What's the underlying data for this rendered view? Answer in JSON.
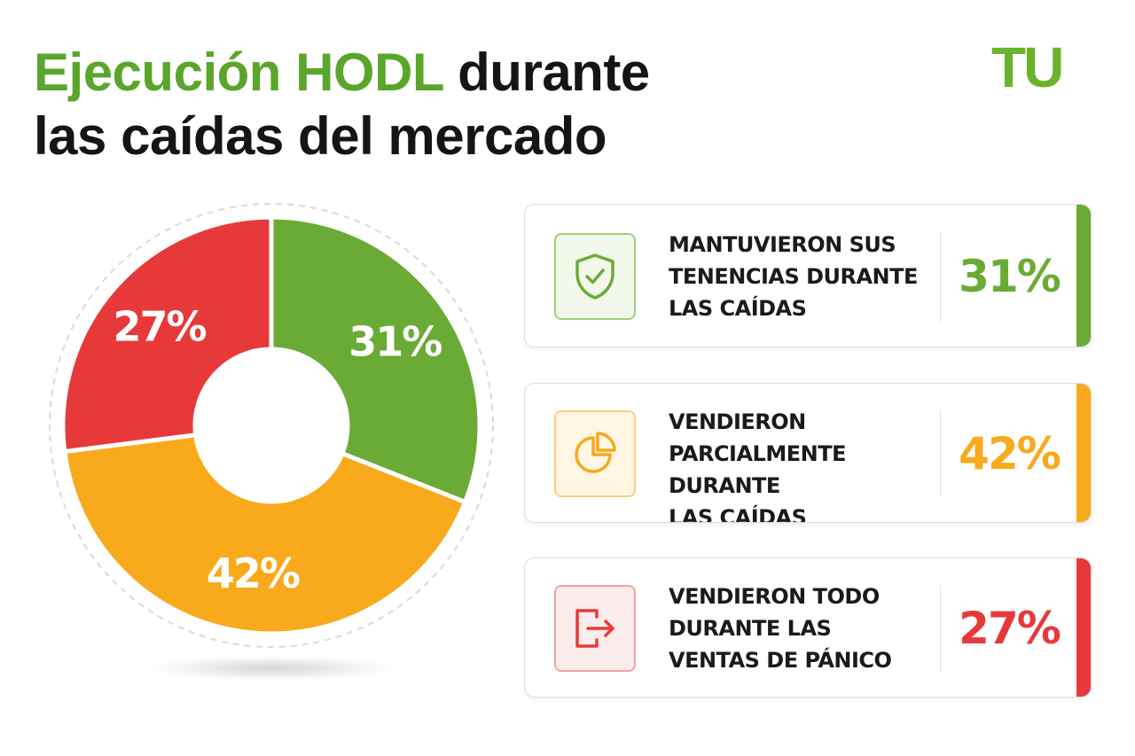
{
  "header": {
    "title_accent": "Ejecución HODL",
    "title_rest": " durante",
    "title_line2": "las caídas del mercado",
    "logo": "TU"
  },
  "colors": {
    "green": "#6aab35",
    "orange": "#f8a91c",
    "red": "#e8393a",
    "title_green": "#59a62a"
  },
  "chart_data": {
    "type": "pie",
    "donut": true,
    "slices": [
      {
        "value": 31,
        "label": "31%",
        "color": "#6aab35"
      },
      {
        "value": 42,
        "label": "42%",
        "color": "#f8a91c"
      },
      {
        "value": 27,
        "label": "27%",
        "color": "#e8393a"
      }
    ]
  },
  "legend": [
    {
      "icon": "shield-check-icon",
      "text": "MANTUVIERON SUS\nTENENCIAS DURANTE\nLAS CAÍDAS",
      "value": "31%",
      "color": "#6aab35"
    },
    {
      "icon": "pie-chart-icon",
      "text": "VENDIERON\nPARCIALMENTE DURANTE\nLAS CAÍDAS",
      "value": "42%",
      "color": "#f8a91c"
    },
    {
      "icon": "exit-door-icon",
      "text": "VENDIERON TODO\nDURANTE LAS\nVENTAS DE PÁNICO",
      "value": "27%",
      "color": "#e8393a"
    }
  ]
}
